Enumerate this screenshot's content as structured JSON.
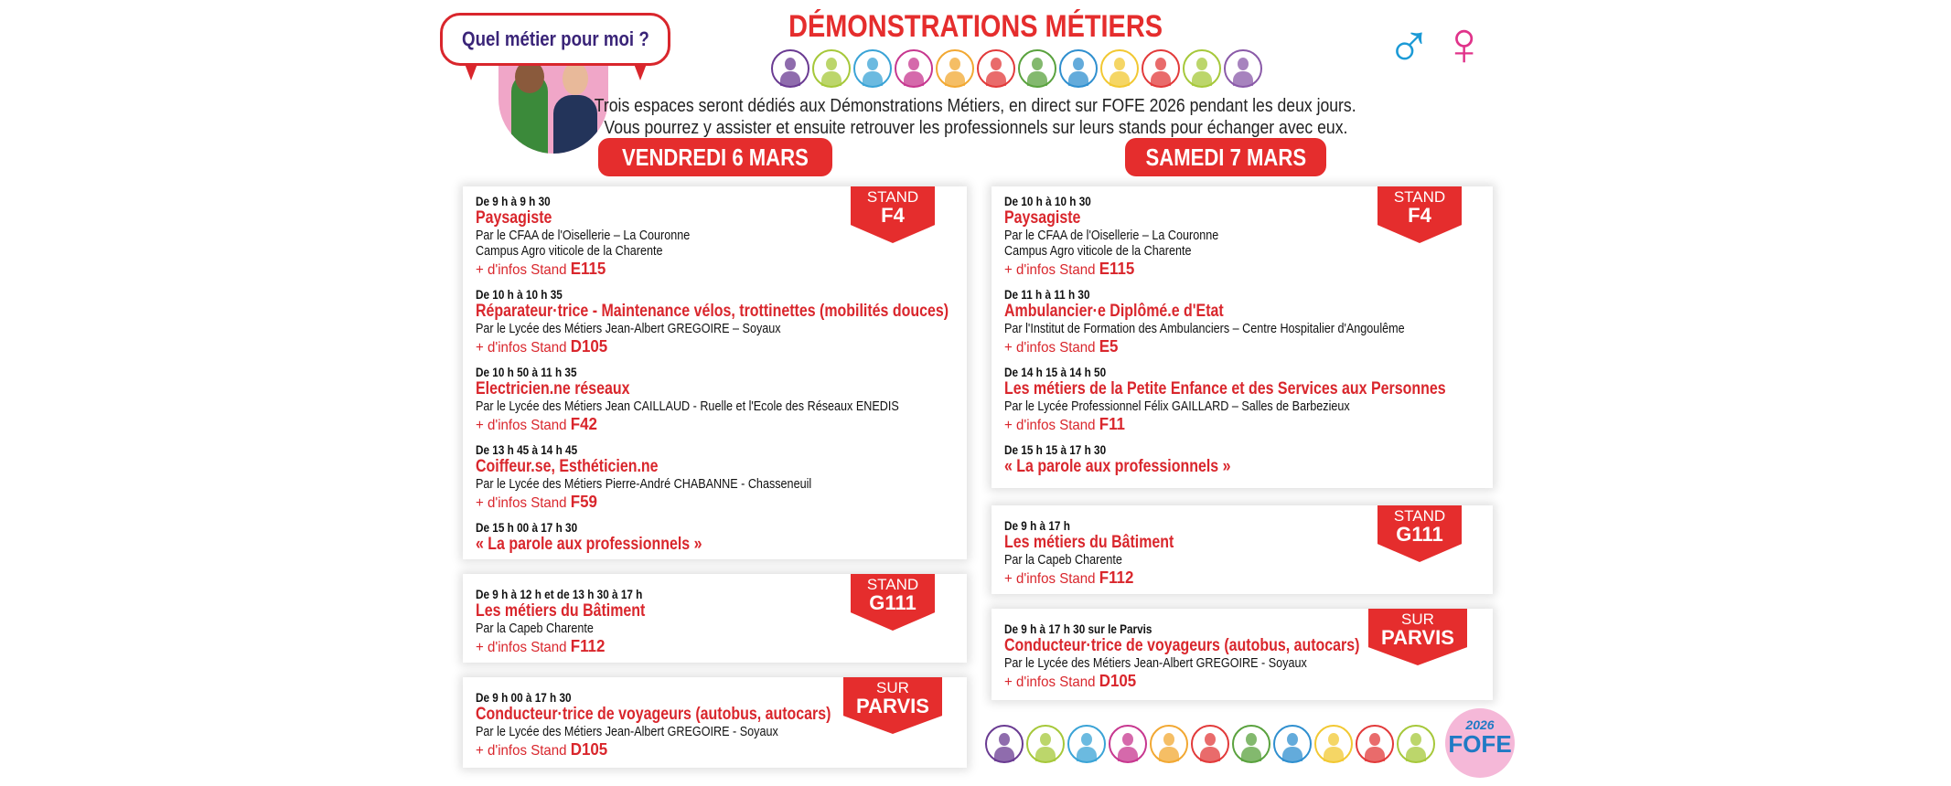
{
  "header": {
    "bubble": "Quel métier pour moi ?",
    "title": "DÉMONSTRATIONS MÉTIERS",
    "intro": [
      "Trois espaces seront dédiés aux Démonstrations Métiers, en direct sur FOFE 2026 pendant les deux jours.",
      "Vous pourrez y assister et ensuite retrouver les professionnels sur leurs stands pour échanger avec eux."
    ],
    "male_symbol": "♂",
    "female_symbol": "♀",
    "icon_colors": [
      "#6a3b92",
      "#a6c83a",
      "#3aa3d6",
      "#c7378f",
      "#f2a832",
      "#e23a3a",
      "#5aa23e",
      "#2f8fcf",
      "#f2c832",
      "#e23a3a",
      "#a6c83a",
      "#8a5aa8"
    ]
  },
  "colors": {
    "accent": "#e52d2d",
    "bubble_text": "#3a2478",
    "male": "#1b9ad6",
    "female": "#e0338a"
  },
  "days": [
    {
      "label": "VENDREDI 6 MARS",
      "boxes": [
        {
          "tag1": "STAND",
          "tag2": "F4",
          "entries": [
            {
              "time": "De 9 h à 9 h 30",
              "name": "Paysagiste",
              "desc": [
                "Par le CFAA de l'Oisellerie – La Couronne",
                "Campus Agro viticole de la Charente"
              ],
              "infos": "+ d'infos Stand ",
              "stand": "E115"
            },
            {
              "time": "De 10 h à 10 h 35",
              "name": "Réparateur·trice - Maintenance vélos, trottinettes (mobilités douces)",
              "desc": [
                "Par le Lycée des Métiers Jean-Albert GREGOIRE – Soyaux"
              ],
              "infos": "+ d'infos Stand ",
              "stand": "D105"
            },
            {
              "time": "De 10 h 50 à  11 h 35",
              "name": "Electricien.ne réseaux",
              "desc": [
                "Par le Lycée des Métiers Jean CAILLAUD - Ruelle et l'Ecole des Réseaux ENEDIS"
              ],
              "infos": "+ d'infos Stand ",
              "stand": "F42"
            },
            {
              "time": "De 13 h 45 à  14 h 45",
              "name": "Coiffeur.se, Esthéticien.ne",
              "desc": [
                "Par le Lycée des Métiers Pierre-André CHABANNE - Chasseneuil"
              ],
              "infos": "+ d'infos Stand ",
              "stand": "F59"
            },
            {
              "time": "De 15 h 00 à  17 h 30",
              "name": "« La parole aux professionnels »",
              "desc": [],
              "infos": "",
              "stand": ""
            }
          ]
        },
        {
          "tag1": "STAND",
          "tag2": "G111",
          "entries": [
            {
              "time": "De 9 h à 12 h et de 13 h 30 à 17 h",
              "name": "Les métiers du Bâtiment",
              "desc": [
                "Par la Capeb Charente"
              ],
              "infos": "+ d'infos Stand ",
              "stand": "F112"
            }
          ]
        },
        {
          "tag1": "SUR",
          "tag2": "PARVIS",
          "entries": [
            {
              "time": "De 9 h 00 à 17 h 30",
              "name": "Conducteur·trice de voyageurs (autobus, autocars)",
              "desc": [
                "Par le Lycée des Métiers Jean-Albert GREGOIRE - Soyaux"
              ],
              "infos": "+ d'infos Stand ",
              "stand": "D105"
            }
          ]
        }
      ]
    },
    {
      "label": "SAMEDI 7 MARS",
      "boxes": [
        {
          "tag1": "STAND",
          "tag2": "F4",
          "entries": [
            {
              "time": "De 10 h à 10 h 30",
              "name": "Paysagiste",
              "desc": [
                "Par le CFAA de l'Oisellerie – La Couronne",
                "Campus Agro viticole de la Charente"
              ],
              "infos": "+ d'infos Stand ",
              "stand": "E115"
            },
            {
              "time": "De 11 h à 11 h 30",
              "name": "Ambulancier·e Diplômé.e d'Etat",
              "desc": [
                "Par l'Institut de Formation des Ambulanciers – Centre Hospitalier d'Angoulême"
              ],
              "infos": "+ d'infos Stand ",
              "stand": "E5"
            },
            {
              "time": "De 14 h 15 à 14 h 50",
              "name": "Les métiers de la Petite Enfance et des Services aux Personnes",
              "desc": [
                "Par le Lycée Professionnel Félix GAILLARD – Salles de Barbezieux"
              ],
              "infos": "+ d'infos Stand ",
              "stand": "F11"
            },
            {
              "time": "De 15 h 15 à  17 h 30",
              "name": "« La parole aux professionnels »",
              "desc": [],
              "infos": "",
              "stand": ""
            }
          ]
        },
        {
          "tag1": "STAND",
          "tag2": "G111",
          "entries": [
            {
              "time": "De 9 h à 17 h",
              "name": "Les métiers du Bâtiment",
              "desc": [
                "Par la Capeb Charente"
              ],
              "infos": "+ d'infos Stand ",
              "stand": "F112"
            }
          ]
        },
        {
          "tag1": "SUR",
          "tag2": "PARVIS",
          "entries": [
            {
              "time": "De 9 h à 17 h 30 sur le Parvis",
              "name": "Conducteur·trice de voyageurs (autobus, autocars)",
              "desc": [
                "Par le Lycée des Métiers Jean-Albert GREGOIRE - Soyaux"
              ],
              "infos": "+ d'infos Stand ",
              "stand": "D105"
            }
          ]
        }
      ]
    }
  ],
  "footer": {
    "icon_colors": [
      "#6a3b92",
      "#a6c83a",
      "#3aa3d6",
      "#c7378f",
      "#f2a832",
      "#e23a3a",
      "#5aa23e",
      "#2f8fcf",
      "#f2c832",
      "#e23a3a",
      "#a6c83a"
    ],
    "logo_year": "2026",
    "logo_name": "FOFE"
  }
}
